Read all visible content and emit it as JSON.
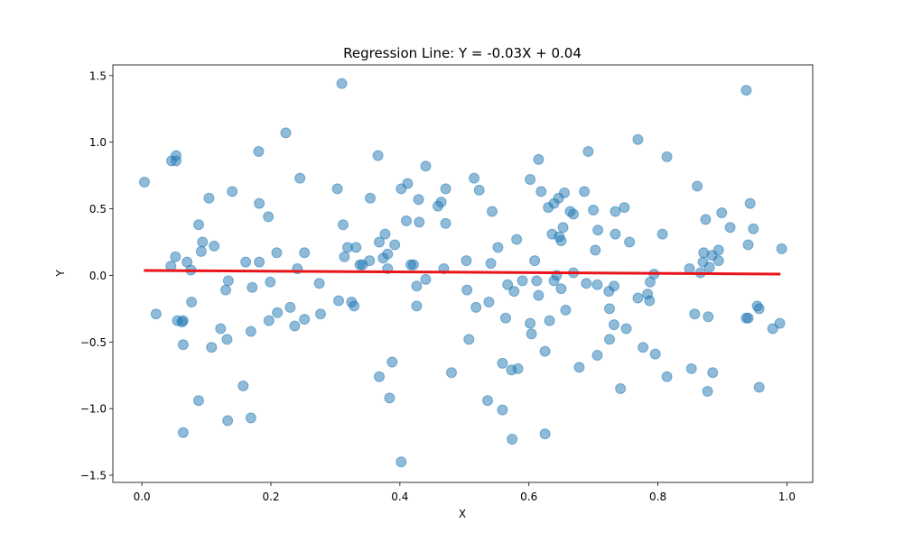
{
  "chart_data": {
    "type": "scatter",
    "title": "Regression Line: Y = -0.03X + 0.04",
    "x_label": "X",
    "y_label": "Y",
    "color": "#1f77b4",
    "x": [
      0.004,
      0.022,
      0.045,
      0.046,
      0.053,
      0.053,
      0.052,
      0.055,
      0.062,
      0.064,
      0.064,
      0.064,
      0.07,
      0.076,
      0.077,
      0.088,
      0.094,
      0.092,
      0.088,
      0.104,
      0.108,
      0.112,
      0.122,
      0.13,
      0.134,
      0.132,
      0.133,
      0.14,
      0.157,
      0.161,
      0.169,
      0.171,
      0.169,
      0.181,
      0.182,
      0.182,
      0.196,
      0.199,
      0.197,
      0.209,
      0.21,
      0.223,
      0.23,
      0.237,
      0.241,
      0.245,
      0.252,
      0.252,
      0.275,
      0.277,
      0.303,
      0.305,
      0.31,
      0.312,
      0.314,
      0.319,
      0.325,
      0.329,
      0.332,
      0.338,
      0.342,
      0.353,
      0.354,
      0.366,
      0.368,
      0.368,
      0.374,
      0.377,
      0.381,
      0.381,
      0.384,
      0.388,
      0.392,
      0.402,
      0.402,
      0.41,
      0.412,
      0.417,
      0.421,
      0.426,
      0.426,
      0.429,
      0.43,
      0.44,
      0.44,
      0.459,
      0.464,
      0.468,
      0.471,
      0.471,
      0.48,
      0.503,
      0.504,
      0.507,
      0.515,
      0.518,
      0.523,
      0.536,
      0.538,
      0.541,
      0.543,
      0.552,
      0.559,
      0.559,
      0.564,
      0.567,
      0.573,
      0.574,
      0.577,
      0.581,
      0.583,
      0.59,
      0.602,
      0.602,
      0.604,
      0.609,
      0.612,
      0.615,
      0.615,
      0.619,
      0.625,
      0.625,
      0.63,
      0.632,
      0.636,
      0.639,
      0.639,
      0.643,
      0.646,
      0.647,
      0.65,
      0.65,
      0.653,
      0.655,
      0.657,
      0.664,
      0.669,
      0.669,
      0.678,
      0.686,
      0.689,
      0.692,
      0.7,
      0.703,
      0.706,
      0.706,
      0.707,
      0.724,
      0.725,
      0.725,
      0.732,
      0.732,
      0.734,
      0.734,
      0.742,
      0.748,
      0.751,
      0.756,
      0.769,
      0.769,
      0.777,
      0.784,
      0.787,
      0.788,
      0.794,
      0.796,
      0.807,
      0.814,
      0.814,
      0.849,
      0.852,
      0.857,
      0.861,
      0.866,
      0.87,
      0.871,
      0.874,
      0.877,
      0.878,
      0.88,
      0.884,
      0.885,
      0.894,
      0.894,
      0.899,
      0.912,
      0.937,
      0.937,
      0.94,
      0.94,
      0.943,
      0.948,
      0.954,
      0.957,
      0.957,
      0.978,
      0.989,
      0.992
    ],
    "values": [
      0.7,
      -0.29,
      0.07,
      0.86,
      0.9,
      0.86,
      0.14,
      -0.34,
      -0.35,
      -0.34,
      -0.52,
      -1.18,
      0.1,
      0.04,
      -0.2,
      0.38,
      0.25,
      0.18,
      -0.94,
      0.58,
      -0.54,
      0.22,
      -0.4,
      -0.11,
      -0.04,
      -0.48,
      -1.09,
      0.63,
      -0.83,
      0.1,
      -0.42,
      -0.09,
      -1.07,
      0.93,
      0.54,
      0.1,
      0.44,
      -0.05,
      -0.34,
      0.17,
      -0.28,
      1.07,
      -0.24,
      -0.38,
      0.05,
      0.73,
      0.17,
      -0.33,
      -0.06,
      -0.29,
      0.65,
      -0.19,
      1.44,
      0.38,
      0.14,
      0.21,
      -0.2,
      -0.23,
      0.21,
      0.08,
      0.08,
      0.11,
      0.58,
      0.9,
      0.25,
      -0.76,
      0.13,
      0.31,
      0.16,
      0.05,
      -0.92,
      -0.65,
      0.23,
      0.65,
      -1.4,
      0.41,
      0.69,
      0.08,
      0.08,
      -0.08,
      -0.23,
      0.57,
      0.4,
      -0.03,
      0.82,
      0.52,
      0.55,
      0.05,
      0.65,
      0.39,
      -0.73,
      0.11,
      -0.11,
      -0.48,
      0.73,
      -0.24,
      0.64,
      -0.94,
      -0.2,
      0.09,
      0.48,
      0.21,
      -0.66,
      -1.01,
      -0.32,
      -0.07,
      -0.71,
      -1.23,
      -0.12,
      0.27,
      -0.7,
      -0.04,
      0.72,
      -0.36,
      -0.44,
      0.11,
      -0.04,
      0.87,
      -0.15,
      0.63,
      -0.57,
      -1.19,
      0.51,
      -0.34,
      0.31,
      0.54,
      -0.04,
      0.0,
      0.58,
      0.29,
      0.26,
      -0.1,
      0.36,
      0.62,
      -0.26,
      0.48,
      0.46,
      0.02,
      -0.69,
      0.63,
      -0.06,
      0.93,
      0.49,
      0.19,
      -0.6,
      -0.07,
      0.34,
      -0.12,
      -0.25,
      -0.48,
      -0.08,
      -0.37,
      0.48,
      0.31,
      -0.85,
      0.51,
      -0.4,
      0.25,
      1.02,
      -0.17,
      -0.54,
      -0.14,
      -0.19,
      -0.05,
      0.01,
      -0.59,
      0.31,
      0.89,
      -0.76,
      0.05,
      -0.7,
      -0.29,
      0.67,
      0.02,
      0.1,
      0.17,
      0.42,
      -0.87,
      -0.31,
      0.06,
      0.15,
      -0.73,
      0.11,
      0.19,
      0.47,
      0.36,
      1.39,
      -0.32,
      -0.32,
      0.23,
      0.54,
      0.35,
      -0.23,
      -0.25,
      -0.84,
      -0.4,
      -0.36,
      0.2
    ],
    "regression_line": {
      "x": [
        0.003,
        0.99
      ],
      "values": [
        0.037,
        0.01
      ],
      "color": "#e8141a"
    },
    "xlim": [
      -0.045,
      1.04
    ],
    "ylim": [
      -1.554,
      1.58
    ],
    "xticks": [
      {
        "value": 0,
        "label": "0.0"
      },
      0.2,
      0.4,
      0.6,
      0.8,
      {
        "value": 1,
        "label": "1.0"
      }
    ],
    "yticks": [
      {
        "value": -1.5,
        "label": "−1.5"
      },
      {
        "value": -1,
        "label": "−1.0"
      },
      {
        "value": -0.5,
        "label": "−0.5"
      },
      {
        "value": 0,
        "label": "0.0"
      },
      0.5,
      {
        "value": 1,
        "label": "1.0"
      },
      1.5
    ]
  }
}
